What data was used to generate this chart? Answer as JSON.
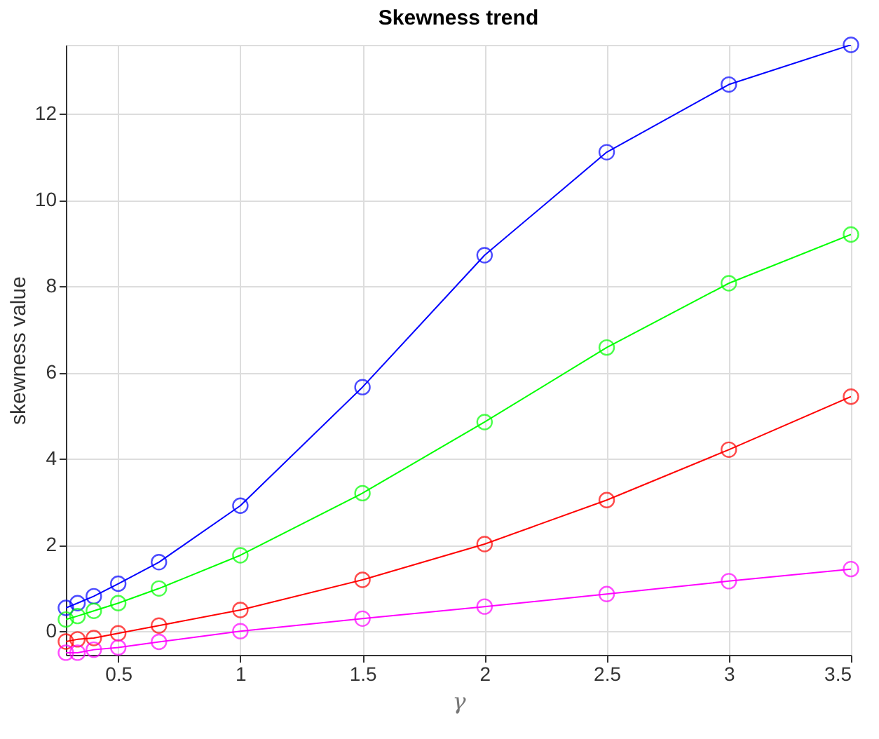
{
  "chart_data": {
    "type": "line",
    "title": "Skewness trend",
    "xlabel": "γ",
    "ylabel": "skewness value",
    "x": [
      0.2857,
      0.3333,
      0.4,
      0.5,
      0.6667,
      1,
      1.5,
      2,
      2.5,
      3,
      3.5
    ],
    "series": [
      {
        "color": "#0000ff",
        "values": [
          0.54,
          0.65,
          0.81,
          1.1,
          1.6,
          2.91,
          5.66,
          8.72,
          11.11,
          12.68,
          13.6
        ]
      },
      {
        "color": "#00ff00",
        "values": [
          0.27,
          0.35,
          0.47,
          0.65,
          0.99,
          1.76,
          3.2,
          4.85,
          6.58,
          8.07,
          9.2
        ]
      },
      {
        "color": "#ff0000",
        "values": [
          -0.24,
          -0.19,
          -0.16,
          -0.05,
          0.13,
          0.49,
          1.19,
          2.02,
          3.04,
          4.21,
          5.44
        ]
      },
      {
        "color": "#ff00ff",
        "values": [
          -0.5,
          -0.5,
          -0.43,
          -0.38,
          -0.25,
          0,
          0.29,
          0.57,
          0.86,
          1.16,
          1.44
        ]
      }
    ],
    "xlim": [
      0.2857,
      3.5
    ],
    "ylim": [
      -0.55,
      13.6
    ],
    "xticks": [
      0.5,
      1,
      1.5,
      2,
      2.5,
      3,
      3.5
    ],
    "yticks": [
      0,
      2,
      4,
      6,
      8,
      10,
      12
    ],
    "grid": true,
    "legend": false,
    "marker": "circle",
    "line_style": "solid"
  }
}
